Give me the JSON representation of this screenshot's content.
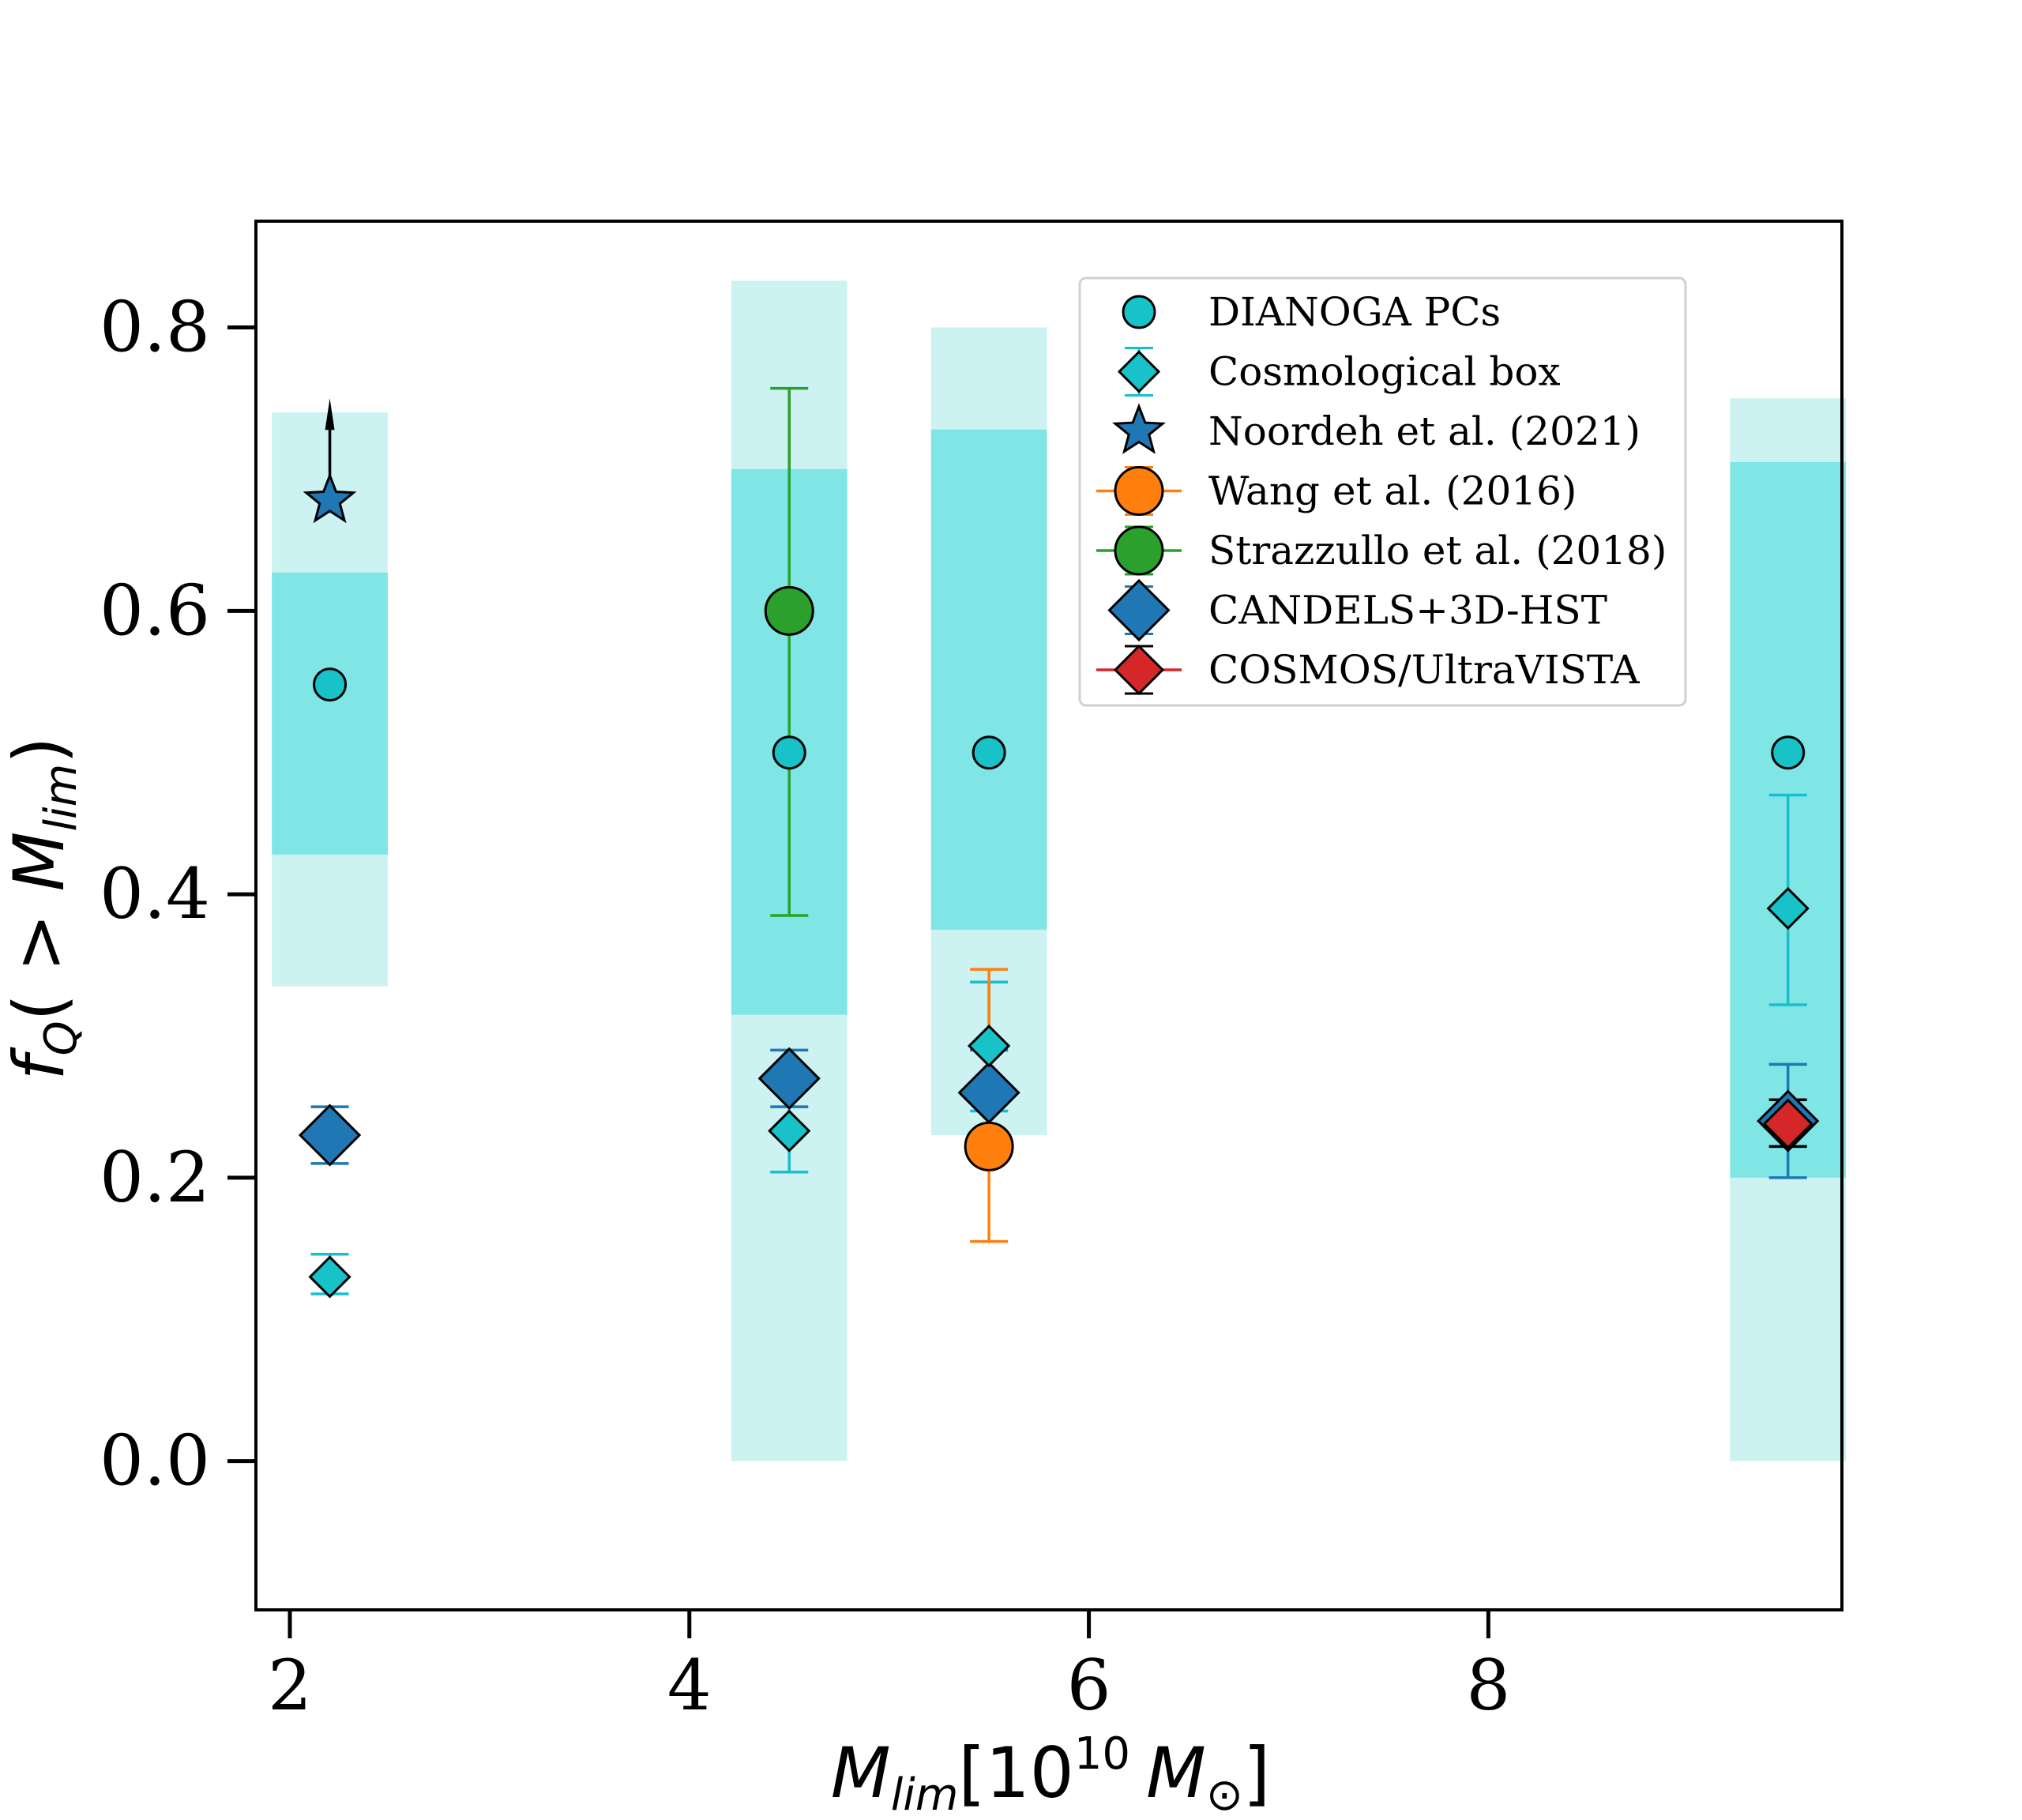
{
  "chart_data": {
    "type": "scatter",
    "title": "",
    "xlabel": {
      "main": "M",
      "sub": "lim",
      "bracket_open": "[10",
      "sup": "10",
      "unit": "M",
      "unit_sub": "⊙",
      "bracket_close": "]"
    },
    "ylabel": {
      "main": "f",
      "sub": "Q",
      "paren_open": "( > ",
      "inner": "M",
      "inner_sub": "lim",
      "paren_close": ")"
    },
    "xlim": [
      1.83,
      9.77
    ],
    "ylim": [
      -0.105,
      0.875
    ],
    "xticks": [
      2,
      4,
      6,
      8
    ],
    "xtick_labels": [
      "2",
      "4",
      "6",
      "8"
    ],
    "yticks": [
      0.0,
      0.2,
      0.4,
      0.6,
      0.8
    ],
    "ytick_labels": [
      "0.0",
      "0.2",
      "0.4",
      "0.6",
      "0.8"
    ],
    "legend_position": "upper-right",
    "bands": [
      {
        "x": 2.2,
        "outer": [
          0.335,
          0.74
        ],
        "inner": [
          0.428,
          0.627
        ]
      },
      {
        "x": 4.5,
        "outer": [
          0.0,
          0.833
        ],
        "inner": [
          0.315,
          0.7
        ]
      },
      {
        "x": 5.5,
        "outer": [
          0.23,
          0.8
        ],
        "inner": [
          0.375,
          0.728
        ]
      },
      {
        "x": 9.5,
        "outer": [
          0.0,
          0.75
        ],
        "inner": [
          0.2,
          0.705
        ]
      }
    ],
    "band_width": 0.58,
    "colors": {
      "band_outer": "#ccf2f2",
      "band_inner": "#7fe5e5",
      "cyan": "#17c2c8",
      "cyan_edge": "#17becf",
      "blue": "#1f77b4",
      "orange": "#ff7f0e",
      "green": "#2ca02c",
      "red": "#d62728",
      "black": "#000000"
    },
    "series": [
      {
        "name": "DIANOGA PCs",
        "marker": "circle",
        "color": "#17c2c8",
        "size": "small",
        "points": [
          {
            "x": 2.2,
            "y": 0.548
          },
          {
            "x": 4.5,
            "y": 0.5
          },
          {
            "x": 5.5,
            "y": 0.5
          },
          {
            "x": 9.5,
            "y": 0.5
          }
        ]
      },
      {
        "name": "Cosmological box",
        "marker": "diamond",
        "color": "#17c2c8",
        "size": "small",
        "err_color": "#17becf",
        "points": [
          {
            "x": 2.2,
            "y": 0.13,
            "lo": 0.118,
            "hi": 0.146
          },
          {
            "x": 4.5,
            "y": 0.233,
            "lo": 0.204,
            "hi": 0.262
          },
          {
            "x": 5.5,
            "y": 0.293,
            "lo": 0.247,
            "hi": 0.338
          },
          {
            "x": 9.5,
            "y": 0.39,
            "lo": 0.322,
            "hi": 0.47
          }
        ]
      },
      {
        "name": "Noordeh et al. (2021)",
        "marker": "star",
        "color": "#1f77b4",
        "size": "large",
        "lower_limit": true,
        "points": [
          {
            "x": 2.2,
            "y": 0.678,
            "arrow_to": 0.75
          }
        ]
      },
      {
        "name": "Wang et al. (2016)",
        "marker": "circle",
        "color": "#ff7f0e",
        "size": "large",
        "err_color": "#ff7f0e",
        "points": [
          {
            "x": 5.5,
            "y": 0.222,
            "lo": 0.155,
            "hi": 0.347
          }
        ]
      },
      {
        "name": "Strazzullo et al. (2018)",
        "marker": "circle",
        "color": "#2ca02c",
        "size": "large",
        "err_color": "#2ca02c",
        "points": [
          {
            "x": 4.5,
            "y": 0.6,
            "lo": 0.385,
            "hi": 0.757
          }
        ]
      },
      {
        "name": "CANDELS+3D-HST",
        "marker": "diamond",
        "color": "#1f77b4",
        "size": "large",
        "err_color": "#1f77b4",
        "points": [
          {
            "x": 2.2,
            "y": 0.23,
            "lo": 0.21,
            "hi": 0.25
          },
          {
            "x": 4.5,
            "y": 0.27,
            "lo": 0.25,
            "hi": 0.29
          },
          {
            "x": 5.5,
            "y": 0.26,
            "lo": 0.23,
            "hi": 0.29
          },
          {
            "x": 9.5,
            "y": 0.24,
            "lo": 0.2,
            "hi": 0.28
          }
        ]
      },
      {
        "name": "COSMOS/UltraVISTA",
        "marker": "diamond",
        "color": "#d62728",
        "size": "medium",
        "err_color": "#000000",
        "points": [
          {
            "x": 9.5,
            "y": 0.238,
            "lo": 0.222,
            "hi": 0.255
          }
        ]
      }
    ]
  }
}
